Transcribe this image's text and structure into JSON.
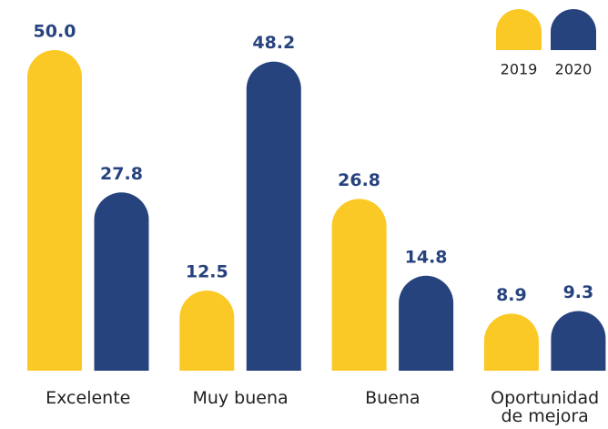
{
  "chart_data": {
    "type": "bar",
    "categories": [
      "Excelente",
      "Muy buena",
      "Buena",
      "Oportunidad de mejora"
    ],
    "series": [
      {
        "name": "2019",
        "color": "#fbc926",
        "values": [
          50,
          12.5,
          26.8,
          8.9
        ],
        "value_labels": [
          "50.0",
          "12.5",
          "26.8",
          "8.9"
        ]
      },
      {
        "name": "2020",
        "color": "#27437e",
        "values": [
          27.8,
          48.2,
          14.8,
          9.3
        ],
        "value_labels": [
          "27.8",
          "48.2",
          "14.8",
          "9.3"
        ]
      }
    ],
    "legend": "top-right"
  }
}
